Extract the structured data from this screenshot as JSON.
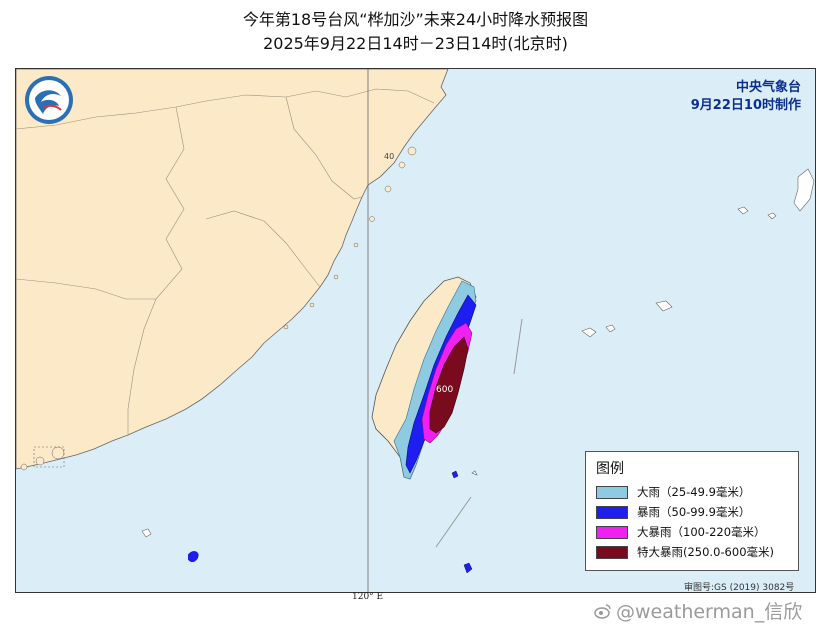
{
  "header": {
    "title": "今年第18号台风“桦加沙”未来24小时降水预报图",
    "subtitle": "2025年9月22日14时－23日14时(北京时)"
  },
  "agency": {
    "name": "中央气象台",
    "issued": "9月22日10时制作"
  },
  "legend": {
    "title": "图例",
    "items": [
      {
        "label": "大雨（25-49.9毫米）",
        "color": "#8ecbe3"
      },
      {
        "label": "暴雨（50-99.9毫米）",
        "color": "#1e1ef0"
      },
      {
        "label": "大暴雨（100-220毫米）",
        "color": "#f020f0"
      },
      {
        "label": "特大暴雨(250.0-600毫米)",
        "color": "#7a0a1e"
      }
    ]
  },
  "map": {
    "contour_labels": {
      "max": "600",
      "latitude": "40"
    },
    "longitude_label": "120° E",
    "approval_number": "审图号:GS (2019) 3082号",
    "land_color": "#fbe9c8",
    "sea_color": "#dbeef7"
  },
  "watermark": {
    "text": "@weatherman_信欣",
    "icon": "weibo-icon"
  }
}
